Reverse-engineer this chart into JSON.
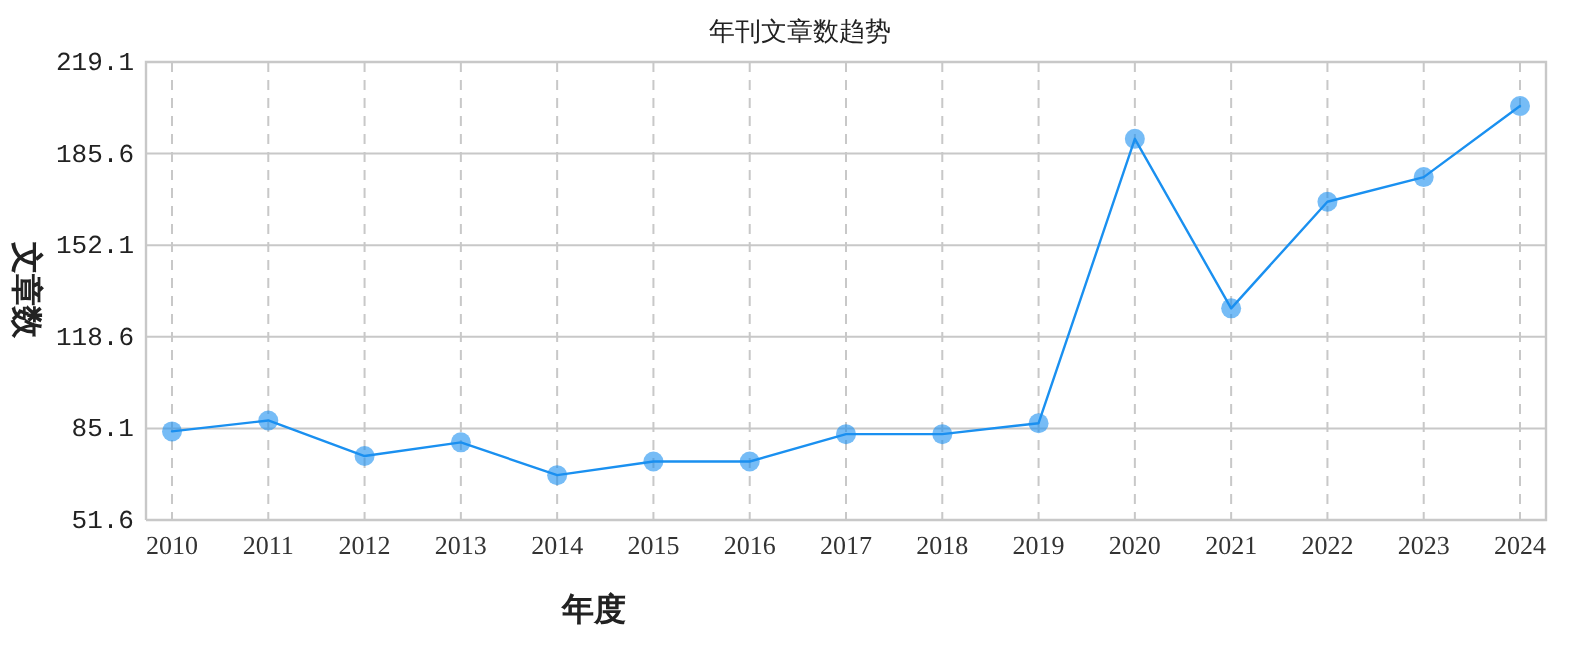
{
  "chart_data": {
    "type": "line",
    "title": "年刊文章数趋势",
    "xlabel": "年度",
    "ylabel": "文章数",
    "categories": [
      "2010",
      "2011",
      "2012",
      "2013",
      "2014",
      "2015",
      "2016",
      "2017",
      "2018",
      "2019",
      "2020",
      "2021",
      "2022",
      "2023",
      "2024"
    ],
    "series": [
      {
        "color": "#1a90f0",
        "values": [
          84,
          88,
          75,
          80,
          68,
          73,
          73,
          83,
          83,
          87,
          191,
          129,
          168,
          177,
          203
        ]
      }
    ],
    "ylim": [
      51.6,
      219.1
    ],
    "yticks": [
      51.6,
      85.1,
      118.6,
      152.1,
      185.6,
      219.1
    ],
    "grid": true,
    "marker": "circle",
    "line_style": "solid"
  }
}
